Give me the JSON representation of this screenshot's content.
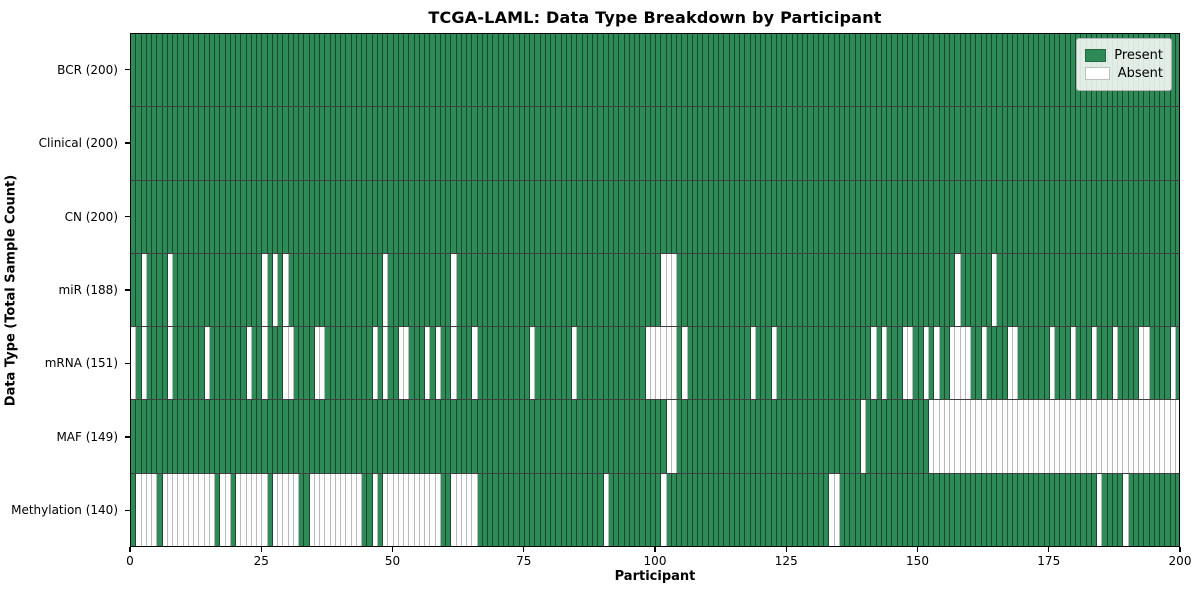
{
  "title": "TCGA-LAML: Data Type Breakdown by Participant",
  "x_axis": {
    "label": "Participant",
    "ticks": [
      0,
      25,
      50,
      75,
      100,
      125,
      150,
      175,
      200
    ],
    "range": [
      0,
      200
    ]
  },
  "y_axis": {
    "label": "Data Type (Total Sample Count)"
  },
  "legend": {
    "items": [
      {
        "label": "Present",
        "color": "#2e8b57"
      },
      {
        "label": "Absent",
        "color": "#ffffff"
      }
    ]
  },
  "colors": {
    "present": "#2e8b57",
    "absent": "#ffffff",
    "cell_border_on_green": "rgba(0,0,0,0.48)",
    "cell_border_on_white": "#b9b9b9",
    "axes_border": "#000000"
  },
  "chart_data": {
    "type": "heatmap",
    "n_participants": 200,
    "value_encoding": {
      "present": "green",
      "absent": "white"
    },
    "rows": [
      {
        "label": "BCR (200)",
        "data_type": "BCR",
        "present_count": 200,
        "absent_indices": []
      },
      {
        "label": "Clinical (200)",
        "data_type": "Clinical",
        "present_count": 200,
        "absent_indices": []
      },
      {
        "label": "CN (200)",
        "data_type": "CN",
        "present_count": 200,
        "absent_indices": []
      },
      {
        "label": "miR (188)",
        "data_type": "miR",
        "present_count": 188,
        "absent_indices": [
          2,
          7,
          25,
          27,
          29,
          48,
          61,
          101,
          102,
          103,
          157,
          164
        ]
      },
      {
        "label": "mRNA (151)",
        "data_type": "mRNA",
        "present_count": 151,
        "absent_indices": [
          0,
          2,
          7,
          14,
          22,
          25,
          29,
          30,
          35,
          36,
          46,
          48,
          51,
          52,
          56,
          58,
          61,
          65,
          76,
          84,
          98,
          99,
          100,
          101,
          102,
          103,
          105,
          118,
          122,
          141,
          143,
          147,
          148,
          151,
          153,
          156,
          157,
          158,
          159,
          162,
          167,
          168,
          175,
          179,
          183,
          187,
          192,
          193,
          198
        ]
      },
      {
        "label": "MAF (149)",
        "data_type": "MAF",
        "present_count": 149,
        "absent_indices": [
          102,
          103,
          139,
          152,
          153,
          154,
          155,
          156,
          157,
          158,
          159,
          160,
          161,
          162,
          163,
          164,
          165,
          166,
          167,
          168,
          169,
          170,
          171,
          172,
          173,
          174,
          175,
          176,
          177,
          178,
          179,
          180,
          181,
          182,
          183,
          184,
          185,
          186,
          187,
          188,
          189,
          190,
          191,
          192,
          193,
          194,
          195,
          196,
          197,
          198,
          199
        ]
      },
      {
        "label": "Methylation (140)",
        "data_type": "Methylation",
        "present_count": 140,
        "absent_indices": [
          1,
          2,
          3,
          4,
          6,
          7,
          8,
          9,
          10,
          11,
          12,
          13,
          14,
          15,
          17,
          18,
          20,
          21,
          22,
          23,
          24,
          25,
          27,
          28,
          29,
          30,
          31,
          34,
          35,
          36,
          37,
          38,
          39,
          40,
          41,
          42,
          43,
          46,
          48,
          49,
          50,
          51,
          52,
          53,
          54,
          55,
          56,
          57,
          58,
          61,
          62,
          63,
          64,
          65,
          90,
          101,
          133,
          134,
          184,
          189
        ]
      }
    ],
    "title": "TCGA-LAML: Data Type Breakdown by Participant",
    "xlabel": "Participant",
    "ylabel": "Data Type (Total Sample Count)",
    "legend_position": "upper right",
    "grid": "cell borders visible"
  }
}
